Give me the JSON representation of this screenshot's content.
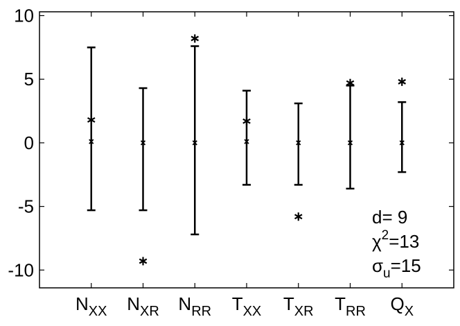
{
  "chart_data": {
    "type": "errorbar",
    "categories": [
      {
        "base": "N",
        "sub": "XX"
      },
      {
        "base": "N",
        "sub": "XR"
      },
      {
        "base": "N",
        "sub": "RR"
      },
      {
        "base": "T",
        "sub": "XX"
      },
      {
        "base": "T",
        "sub": "XR"
      },
      {
        "base": "T",
        "sub": "RR"
      },
      {
        "base": "Q",
        "sub": "X"
      }
    ],
    "centers": [
      0.1,
      0,
      0,
      0.1,
      0,
      0,
      0
    ],
    "lower": [
      -5.3,
      -5.3,
      -7.2,
      -3.3,
      -3.3,
      -3.6,
      -2.3
    ],
    "upper": [
      7.5,
      4.3,
      7.6,
      4.1,
      3.1,
      4.5,
      3.2
    ],
    "observed": [
      1.8,
      -9.3,
      8.2,
      1.7,
      -5.8,
      4.7,
      4.8
    ],
    "color": "#000000",
    "ylim": [
      -11.4,
      10.3
    ],
    "yticks": [
      -10,
      -5,
      0,
      5,
      10
    ],
    "annotations": [
      {
        "base": "d= 9"
      },
      {
        "base": "χ",
        "sup": "2",
        "rest": "=13"
      },
      {
        "base": "σ",
        "sub": "u",
        "rest": "=15"
      }
    ]
  }
}
